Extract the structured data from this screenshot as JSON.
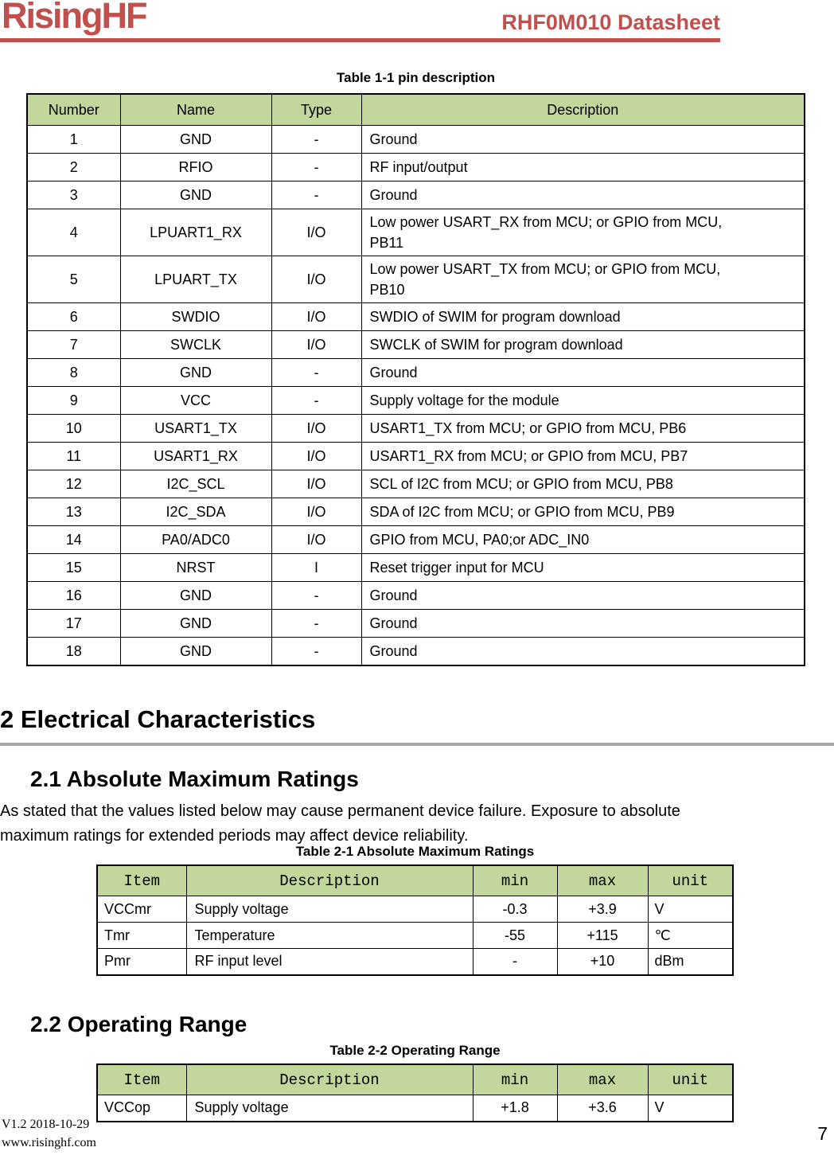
{
  "colors": {
    "accent_red": "#C0504D",
    "table_header_green": "#C3D69B",
    "divider_gray": "#A6A6A6"
  },
  "header": {
    "logo": "RisingHF",
    "title": "RHF0M010 Datasheet"
  },
  "pin_table": {
    "caption": "Table 1-1 pin description",
    "columns": [
      "Number",
      "Name",
      "Type",
      "Description"
    ],
    "rows": [
      [
        "1",
        "GND",
        "-",
        "Ground"
      ],
      [
        "2",
        "RFIO",
        "-",
        "RF input/output"
      ],
      [
        "3",
        "GND",
        "-",
        "Ground"
      ],
      [
        "4",
        "LPUART1_RX",
        "I/O",
        "Low power USART_RX from MCU; or GPIO from MCU,\nPB11"
      ],
      [
        "5",
        "LPUART_TX",
        "I/O",
        "Low power USART_TX from MCU; or GPIO from MCU,\nPB10"
      ],
      [
        "6",
        "SWDIO",
        "I/O",
        "SWDIO of SWIM for program download"
      ],
      [
        "7",
        "SWCLK",
        "I/O",
        "SWCLK of SWIM for program download"
      ],
      [
        "8",
        "GND",
        "-",
        "Ground"
      ],
      [
        "9",
        "VCC",
        "-",
        "Supply voltage for the module"
      ],
      [
        "10",
        "USART1_TX",
        "I/O",
        "USART1_TX from MCU; or GPIO from MCU, PB6"
      ],
      [
        "11",
        "USART1_RX",
        "I/O",
        "USART1_RX from MCU; or GPIO from MCU, PB7"
      ],
      [
        "12",
        "I2C_SCL",
        "I/O",
        "SCL of I2C from MCU; or GPIO from MCU, PB8"
      ],
      [
        "13",
        "I2C_SDA",
        "I/O",
        "SDA of I2C from MCU; or GPIO from MCU, PB9"
      ],
      [
        "14",
        "PA0/ADC0",
        "I/O",
        "GPIO from MCU, PA0;or ADC_IN0"
      ],
      [
        "15",
        "NRST",
        "I",
        "Reset trigger input for MCU"
      ],
      [
        "16",
        "GND",
        "-",
        "Ground"
      ],
      [
        "17",
        "GND",
        "-",
        "Ground"
      ],
      [
        "18",
        "GND",
        "-",
        "Ground"
      ]
    ]
  },
  "sections": {
    "electrical": {
      "heading": "2 Electrical Characteristics"
    },
    "abs_max": {
      "heading": "2.1 Absolute Maximum Ratings",
      "paragraph": "As stated that the values listed below may cause permanent device failure. Exposure to absolute\nmaximum ratings for extended periods may affect device reliability.",
      "table": {
        "caption": "Table 2-1 Absolute Maximum Ratings",
        "columns": [
          "Item",
          "Description",
          "min",
          "max",
          "unit"
        ],
        "rows": [
          [
            "VCCmr",
            "Supply voltage",
            "-0.3",
            "+3.9",
            "V"
          ],
          [
            "Tmr",
            "Temperature",
            "-55",
            "+115",
            "℃"
          ],
          [
            "Pmr",
            "RF input level",
            "-",
            "+10",
            "dBm"
          ]
        ]
      }
    },
    "operating": {
      "heading": "2.2 Operating Range",
      "table": {
        "caption": "Table 2-2 Operating Range",
        "columns": [
          "Item",
          "Description",
          "min",
          "max",
          "unit"
        ],
        "rows": [
          [
            "VCCop",
            "Supply voltage",
            "+1.8",
            "+3.6",
            "V"
          ]
        ]
      }
    }
  },
  "footer": {
    "version": "V1.2 2018-10-29",
    "website": "www.risinghf.com",
    "page_number": "7"
  }
}
